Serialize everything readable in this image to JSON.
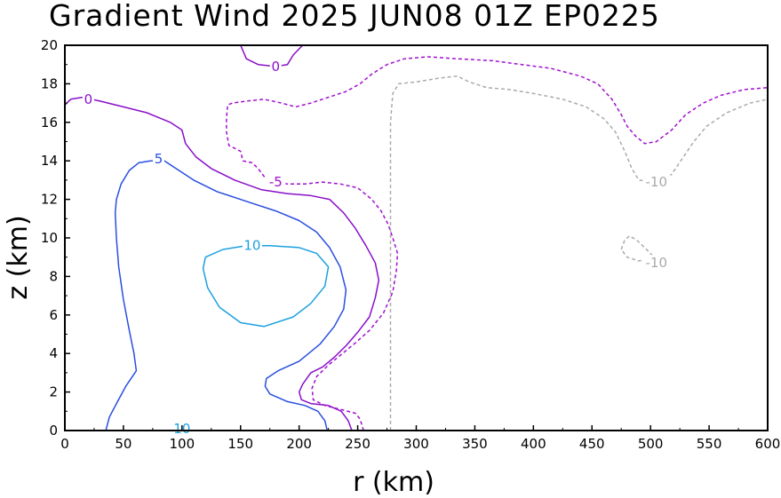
{
  "chart_data": {
    "type": "contour",
    "title": "Gradient Wind 2025 JUN08 01Z   EP0225",
    "xlabel": "r (km)",
    "ylabel": "z (km)",
    "xlim": [
      0,
      600
    ],
    "ylim": [
      0,
      20
    ],
    "x_ticks": [
      "0",
      "50",
      "100",
      "150",
      "200",
      "250",
      "300",
      "350",
      "400",
      "450",
      "500",
      "550",
      "600"
    ],
    "y_ticks": [
      "0",
      "2",
      "4",
      "6",
      "8",
      "10",
      "12",
      "14",
      "16",
      "18",
      "20"
    ],
    "grid": false,
    "colors": {
      "c10": "#1aa0e0",
      "c5": "#2a4fe0",
      "c0": "#8a10c8",
      "cm5": "#a010d0",
      "cm10": "#aaaaaa"
    },
    "contours": [
      {
        "level": 10,
        "color": "c10",
        "dash": false,
        "label": "10",
        "label_at": [
          160,
          9.6
        ],
        "points": [
          [
            120,
            9.0
          ],
          [
            135,
            9.4
          ],
          [
            155,
            9.6
          ],
          [
            175,
            9.6
          ],
          [
            200,
            9.5
          ],
          [
            215,
            9.2
          ],
          [
            225,
            8.5
          ],
          [
            222,
            7.5
          ],
          [
            210,
            6.6
          ],
          [
            195,
            5.9
          ],
          [
            170,
            5.4
          ],
          [
            150,
            5.6
          ],
          [
            132,
            6.4
          ],
          [
            122,
            7.4
          ],
          [
            118,
            8.4
          ],
          [
            120,
            9.0
          ]
        ]
      },
      {
        "level": 10,
        "color": "c10",
        "dash": false,
        "label": "10",
        "label_at": [
          100,
          0.1
        ],
        "points": []
      },
      {
        "level": 5,
        "color": "c5",
        "dash": false,
        "label": "5",
        "label_at": [
          80,
          14.1
        ],
        "points": [
          [
            35,
            0.0
          ],
          [
            38,
            0.7
          ],
          [
            45,
            1.5
          ],
          [
            52,
            2.3
          ],
          [
            61,
            3.1
          ],
          [
            59,
            4.0
          ],
          [
            55,
            5.2
          ],
          [
            50,
            6.8
          ],
          [
            46,
            8.5
          ],
          [
            44,
            10.0
          ],
          [
            43,
            11.3
          ],
          [
            44,
            12.0
          ],
          [
            48,
            12.8
          ],
          [
            55,
            13.5
          ],
          [
            63,
            13.9
          ],
          [
            73,
            14.0
          ],
          [
            85,
            14.0
          ],
          [
            95,
            13.6
          ],
          [
            110,
            13.0
          ],
          [
            130,
            12.4
          ],
          [
            155,
            11.9
          ],
          [
            180,
            11.4
          ],
          [
            200,
            10.9
          ],
          [
            215,
            10.3
          ],
          [
            226,
            9.5
          ],
          [
            235,
            8.5
          ],
          [
            240,
            7.3
          ],
          [
            238,
            6.3
          ],
          [
            230,
            5.4
          ],
          [
            218,
            4.5
          ],
          [
            200,
            3.6
          ],
          [
            182,
            3.1
          ],
          [
            172,
            2.7
          ],
          [
            171,
            2.3
          ],
          [
            175,
            1.9
          ],
          [
            190,
            1.5
          ],
          [
            205,
            1.3
          ],
          [
            216,
            1.0
          ],
          [
            222,
            0.5
          ],
          [
            224,
            0.0
          ]
        ]
      },
      {
        "level": 0,
        "color": "c0",
        "dash": false,
        "label": "0",
        "label_at": [
          20,
          17.2
        ],
        "points": [
          [
            0,
            16.9
          ],
          [
            5,
            17.2
          ],
          [
            15,
            17.3
          ],
          [
            30,
            17.1
          ],
          [
            50,
            16.8
          ],
          [
            70,
            16.5
          ],
          [
            90,
            16.0
          ],
          [
            100,
            15.6
          ],
          [
            103,
            14.9
          ],
          [
            112,
            14.2
          ],
          [
            125,
            13.6
          ],
          [
            145,
            13.0
          ],
          [
            168,
            12.5
          ],
          [
            190,
            12.3
          ],
          [
            210,
            12.2
          ],
          [
            226,
            12.0
          ],
          [
            238,
            11.3
          ],
          [
            248,
            10.5
          ],
          [
            257,
            9.6
          ],
          [
            265,
            8.7
          ],
          [
            268,
            7.8
          ],
          [
            265,
            6.9
          ],
          [
            260,
            5.9
          ],
          [
            250,
            5.1
          ],
          [
            240,
            4.4
          ],
          [
            230,
            3.8
          ],
          [
            220,
            3.3
          ],
          [
            210,
            3.0
          ],
          [
            203,
            2.4
          ],
          [
            200,
            2.0
          ],
          [
            202,
            1.6
          ],
          [
            210,
            1.4
          ],
          [
            225,
            1.3
          ],
          [
            236,
            1.0
          ],
          [
            242,
            0.5
          ],
          [
            245,
            0.0
          ]
        ]
      },
      {
        "level": 0,
        "color": "c0",
        "dash": false,
        "label": "0",
        "label_at": [
          180,
          18.9
        ],
        "points": [
          [
            150,
            20.0
          ],
          [
            155,
            19.3
          ],
          [
            165,
            19.0
          ],
          [
            180,
            18.9
          ],
          [
            190,
            19.0
          ],
          [
            195,
            19.5
          ],
          [
            203,
            20.0
          ]
        ]
      },
      {
        "level": -5,
        "color": "cm5",
        "dash": true,
        "label": "-5",
        "label_at": [
          180,
          12.9
        ],
        "points": [
          [
            255,
            0.0
          ],
          [
            252,
            0.6
          ],
          [
            248,
            0.9
          ],
          [
            235,
            1.1
          ],
          [
            222,
            1.3
          ],
          [
            212,
            1.6
          ],
          [
            211,
            2.2
          ],
          [
            215,
            2.8
          ],
          [
            225,
            3.4
          ],
          [
            235,
            3.9
          ],
          [
            247,
            4.5
          ],
          [
            260,
            5.2
          ],
          [
            272,
            6.1
          ],
          [
            280,
            7.2
          ],
          [
            283,
            8.3
          ],
          [
            284,
            9.2
          ],
          [
            280,
            10.0
          ],
          [
            276,
            10.7
          ],
          [
            270,
            11.4
          ],
          [
            262,
            12.0
          ],
          [
            250,
            12.6
          ],
          [
            235,
            12.8
          ],
          [
            220,
            12.9
          ],
          [
            205,
            12.8
          ],
          [
            190,
            12.8
          ],
          [
            178,
            12.9
          ],
          [
            170,
            13.2
          ],
          [
            165,
            13.6
          ],
          [
            160,
            13.9
          ],
          [
            152,
            14.0
          ],
          [
            150,
            14.5
          ],
          [
            140,
            14.8
          ],
          [
            138,
            15.5
          ],
          [
            138,
            16.2
          ],
          [
            139,
            16.9
          ],
          [
            143,
            17.0
          ],
          [
            155,
            17.1
          ],
          [
            170,
            17.2
          ],
          [
            185,
            17.0
          ],
          [
            197,
            16.8
          ],
          [
            210,
            17.0
          ],
          [
            225,
            17.3
          ],
          [
            240,
            17.6
          ],
          [
            252,
            18.0
          ],
          [
            262,
            18.5
          ],
          [
            275,
            19.0
          ],
          [
            290,
            19.3
          ],
          [
            310,
            19.4
          ],
          [
            335,
            19.3
          ],
          [
            365,
            19.2
          ],
          [
            390,
            19.0
          ],
          [
            415,
            18.8
          ],
          [
            440,
            18.4
          ],
          [
            455,
            18.0
          ],
          [
            467,
            17.2
          ],
          [
            475,
            16.4
          ],
          [
            480,
            15.8
          ],
          [
            487,
            15.3
          ],
          [
            495,
            14.9
          ],
          [
            505,
            15.0
          ],
          [
            518,
            15.6
          ],
          [
            530,
            16.4
          ],
          [
            545,
            17.0
          ],
          [
            560,
            17.4
          ],
          [
            580,
            17.7
          ],
          [
            600,
            17.8
          ]
        ]
      },
      {
        "level": -10,
        "color": "cm10",
        "dash": true,
        "label": "-10",
        "label_at": [
          505,
          12.9
        ],
        "points": [
          [
            278,
            0.0
          ],
          [
            278,
            3.0
          ],
          [
            278,
            6.0
          ],
          [
            278,
            9.0
          ],
          [
            278,
            10.5
          ],
          [
            278,
            12.0
          ],
          [
            278,
            14.0
          ],
          [
            278,
            16.0
          ],
          [
            280,
            17.5
          ],
          [
            285,
            18.0
          ],
          [
            300,
            18.1
          ],
          [
            320,
            18.3
          ],
          [
            335,
            18.4
          ],
          [
            345,
            18.1
          ],
          [
            360,
            17.8
          ],
          [
            380,
            17.7
          ],
          [
            400,
            17.5
          ],
          [
            425,
            17.2
          ],
          [
            445,
            16.8
          ],
          [
            460,
            16.2
          ],
          [
            470,
            15.5
          ],
          [
            478,
            14.5
          ],
          [
            484,
            13.6
          ],
          [
            490,
            13.0
          ],
          [
            505,
            12.9
          ],
          [
            518,
            13.3
          ],
          [
            528,
            14.2
          ],
          [
            537,
            15.0
          ],
          [
            548,
            15.8
          ],
          [
            565,
            16.5
          ],
          [
            585,
            17.0
          ],
          [
            600,
            17.2
          ]
        ]
      },
      {
        "level": -10,
        "color": "cm10",
        "dash": true,
        "label": "-10",
        "label_at": [
          505,
          8.7
        ],
        "points": [
          [
            475,
            9.4
          ],
          [
            478,
            9.9
          ],
          [
            482,
            10.1
          ],
          [
            488,
            9.9
          ],
          [
            495,
            9.5
          ],
          [
            503,
            9.0
          ],
          [
            490,
            8.8
          ],
          [
            480,
            9.0
          ],
          [
            475,
            9.4
          ]
        ]
      },
      {
        "level": -5,
        "color": "cm5",
        "dash": true,
        "label": "",
        "label_at": null,
        "points": [
          [
            278,
            0.0
          ],
          [
            0,
            0.0
          ]
        ]
      }
    ]
  }
}
